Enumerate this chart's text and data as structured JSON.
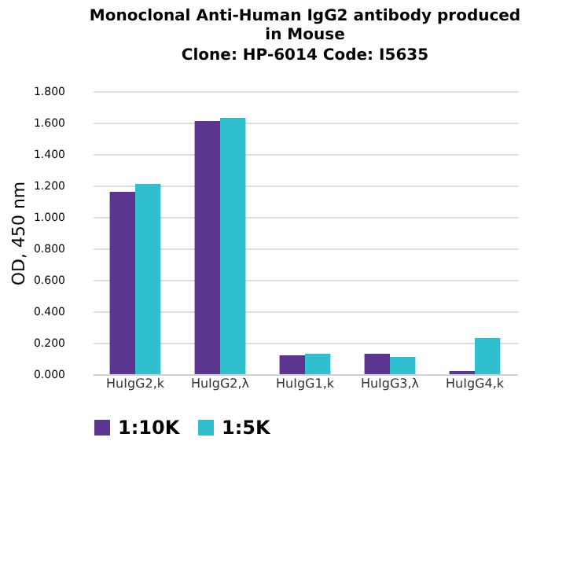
{
  "chart_data": {
    "type": "bar",
    "title": "Monoclonal Anti-Human IgG2 antibody produced in Mouse",
    "subtitle": "Clone: HP-6014  Code: I5635",
    "ylabel": "OD, 450 nm",
    "categories": [
      "HuIgG2,k",
      "HuIgG2,λ",
      "HuIgG1,k",
      "HuIgG3,λ",
      "HuIgG4,k"
    ],
    "series": [
      {
        "name": "1:10K",
        "color": "#5b3590",
        "values": [
          1.16,
          1.61,
          0.12,
          0.13,
          0.02
        ]
      },
      {
        "name": "1:5K",
        "color": "#2fbfcf",
        "values": [
          1.21,
          1.63,
          0.13,
          0.11,
          0.23
        ]
      }
    ],
    "ylim": [
      0,
      1.8
    ],
    "yticks": [
      {
        "value": 0,
        "label": "0.000"
      },
      {
        "value": 0.2,
        "label": "0.200"
      },
      {
        "value": 0.4,
        "label": "0.400"
      },
      {
        "value": 0.6,
        "label": "0.600"
      },
      {
        "value": 0.8,
        "label": "0.800"
      },
      {
        "value": 1.0,
        "label": "1.000"
      },
      {
        "value": 1.2,
        "label": "1.200"
      },
      {
        "value": 1.4,
        "label": "1.400"
      },
      {
        "value": 1.6,
        "label": "1.600"
      },
      {
        "value": 1.8,
        "label": "1.800"
      }
    ],
    "grid": "y",
    "legend": "bottom"
  }
}
